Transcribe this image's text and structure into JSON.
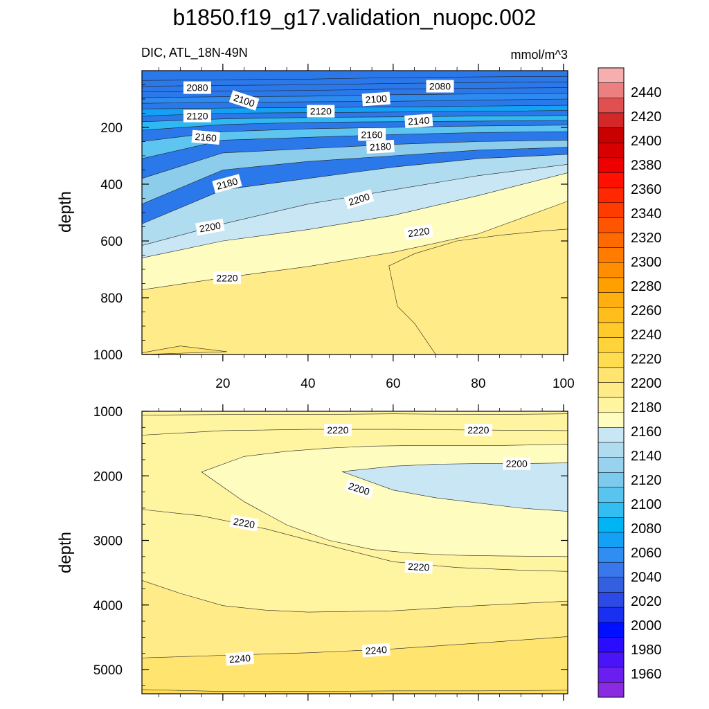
{
  "title": "b1850.f19_g17.validation_nuopc.002",
  "subtitle_left": "DIC, ATL_18N-49N",
  "subtitle_right": "mmol/m^3",
  "ylabel": "depth",
  "colorbar": {
    "labels": [
      1960,
      1980,
      2000,
      2020,
      2040,
      2060,
      2080,
      2100,
      2120,
      2140,
      2160,
      2180,
      2200,
      2220,
      2240,
      2260,
      2280,
      2300,
      2320,
      2340,
      2360,
      2380,
      2400,
      2420,
      2440
    ],
    "colors": [
      "#8a2be2",
      "#6a1ef0",
      "#4a14f8",
      "#2a0cff",
      "#0010ff",
      "#1a30f0",
      "#2e4ae6",
      "#3460e0",
      "#3878ea",
      "#2f8ef0",
      "#14a0f5",
      "#00b4f5",
      "#32bef2",
      "#5ac4f0",
      "#7ccbee",
      "#98d2ee",
      "#b0dcef",
      "#c8e6f4",
      "#fffcc0",
      "#fff4a0",
      "#ffec88",
      "#ffe470",
      "#ffdc50",
      "#ffd43a",
      "#ffca2a",
      "#ffbe1c",
      "#ffb010",
      "#ffa000",
      "#ff8e00",
      "#ff7c00",
      "#ff6a00",
      "#ff5400",
      "#ff3c00",
      "#ff2800",
      "#ff1000",
      "#ee0000",
      "#d80000",
      "#c80000",
      "#d42828",
      "#e05050",
      "#ec8080",
      "#f6aeae"
    ]
  },
  "chart_data": [
    {
      "type": "contour",
      "panel": "upper",
      "title": "b1850.f19_g17.validation_nuopc.002",
      "subtitle": "DIC, ATL_18N-49N",
      "units": "mmol/m^3",
      "xlabel": "",
      "ylabel": "depth",
      "xlim": [
        1,
        101
      ],
      "ylim": [
        1000,
        0
      ],
      "xticks": [
        20,
        40,
        60,
        80,
        100
      ],
      "yticks": [
        200,
        400,
        600,
        800,
        1000
      ],
      "fill_colors": {
        "2060": "#2a78ea",
        "2080": "#2c8af0",
        "2100": "#14a0f5",
        "2120": "#2fb8f2",
        "2140": "#5ec4f0",
        "2160": "#8ccdec",
        "2180": "#b0dcef",
        "2200": "#c8e6f4",
        "2210": "#fffcc0",
        "2220": "#fff4a0",
        "2230": "#ffec88",
        "2240": "#ffe470"
      },
      "contours": [
        {
          "level": 2240,
          "x": [
            1,
            10,
            21,
            1
          ],
          "y": [
            994,
            970,
            990,
            1000
          ],
          "closed": true
        },
        {
          "level": 2230,
          "x": [
            101,
            95,
            85,
            75,
            65,
            59,
            61,
            65,
            70,
            80,
            101
          ],
          "y": [
            558,
            565,
            580,
            600,
            645,
            688,
            830,
            890,
            1000,
            1000,
            1000
          ],
          "closed": true
        },
        {
          "level": 2220,
          "x": [
            1,
            20,
            40,
            60,
            80,
            101
          ],
          "y": [
            772,
            730,
            690,
            640,
            575,
            460
          ]
        },
        {
          "level": 2210,
          "x": [
            1,
            20,
            40,
            60,
            80,
            101
          ],
          "y": [
            660,
            600,
            560,
            510,
            440,
            360
          ]
        },
        {
          "level": 2200,
          "x": [
            1,
            20,
            40,
            60,
            80,
            101
          ],
          "y": [
            616,
            540,
            470,
            420,
            370,
            330
          ]
        },
        {
          "level": 2190,
          "x": [
            1,
            20,
            40,
            60,
            80,
            101
          ],
          "y": [
            540,
            420,
            380,
            340,
            310,
            295
          ]
        },
        {
          "level": 2180,
          "x": [
            1,
            20,
            40,
            60,
            80,
            101
          ],
          "y": [
            470,
            350,
            320,
            300,
            280,
            270
          ]
        },
        {
          "level": 2170,
          "x": [
            1,
            20,
            40,
            60,
            80,
            101
          ],
          "y": [
            380,
            290,
            275,
            260,
            250,
            245
          ]
        },
        {
          "level": 2160,
          "x": [
            1,
            20,
            40,
            60,
            80,
            101
          ],
          "y": [
            310,
            245,
            235,
            225,
            218,
            215
          ]
        },
        {
          "level": 2150,
          "x": [
            1,
            20,
            40,
            60,
            80,
            101
          ],
          "y": [
            250,
            215,
            205,
            200,
            195,
            192
          ]
        },
        {
          "level": 2140,
          "x": [
            1,
            20,
            40,
            60,
            80,
            101
          ],
          "y": [
            210,
            190,
            182,
            180,
            178,
            175
          ]
        },
        {
          "level": 2130,
          "x": [
            1,
            20,
            40,
            60,
            80,
            101
          ],
          "y": [
            180,
            170,
            165,
            163,
            160,
            158
          ]
        },
        {
          "level": 2120,
          "x": [
            1,
            20,
            40,
            60,
            80,
            101
          ],
          "y": [
            160,
            150,
            148,
            146,
            144,
            140
          ]
        },
        {
          "level": 2110,
          "x": [
            1,
            20,
            40,
            60,
            80,
            101
          ],
          "y": [
            135,
            132,
            130,
            128,
            125,
            122
          ]
        },
        {
          "level": 2100,
          "x": [
            1,
            20,
            40,
            60,
            80,
            101
          ],
          "y": [
            115,
            112,
            110,
            108,
            104,
            100
          ]
        },
        {
          "level": 2090,
          "x": [
            1,
            20,
            40,
            60,
            80,
            101
          ],
          "y": [
            95,
            92,
            90,
            85,
            82,
            80
          ]
        },
        {
          "level": 2080,
          "x": [
            1,
            20,
            40,
            60,
            80,
            101
          ],
          "y": [
            75,
            72,
            70,
            65,
            62,
            60
          ]
        },
        {
          "level": 2070,
          "x": [
            1,
            20,
            40,
            60,
            80,
            101
          ],
          "y": [
            55,
            52,
            50,
            45,
            42,
            40
          ]
        },
        {
          "level": 2060,
          "x": [
            1,
            20,
            40,
            60,
            80,
            101
          ],
          "y": [
            35,
            32,
            30,
            25,
            22,
            20
          ]
        }
      ],
      "labels": [
        {
          "text": "2080",
          "x": 14,
          "y": 60,
          "angle": 0
        },
        {
          "text": "2100",
          "x": 25,
          "y": 105,
          "angle": 18
        },
        {
          "text": "2120",
          "x": 14,
          "y": 160,
          "angle": 0
        },
        {
          "text": "2120",
          "x": 43,
          "y": 143,
          "angle": 0
        },
        {
          "text": "2100",
          "x": 56,
          "y": 100,
          "angle": -4
        },
        {
          "text": "2080",
          "x": 71,
          "y": 55,
          "angle": 0
        },
        {
          "text": "2140",
          "x": 66,
          "y": 177,
          "angle": -4
        },
        {
          "text": "2160",
          "x": 16,
          "y": 235,
          "angle": 5
        },
        {
          "text": "2160",
          "x": 55,
          "y": 225,
          "angle": 0
        },
        {
          "text": "2180",
          "x": 57,
          "y": 268,
          "angle": -3
        },
        {
          "text": "2180",
          "x": 21,
          "y": 398,
          "angle": -15
        },
        {
          "text": "2200",
          "x": 52,
          "y": 453,
          "angle": -17
        },
        {
          "text": "2200",
          "x": 17,
          "y": 551,
          "angle": -10
        },
        {
          "text": "2220",
          "x": 66,
          "y": 569,
          "angle": -8
        },
        {
          "text": "2220",
          "x": 21,
          "y": 730,
          "angle": 0
        }
      ]
    },
    {
      "type": "contour",
      "panel": "lower",
      "xlabel": "",
      "ylabel": "depth",
      "xlim": [
        1,
        101
      ],
      "ylim": [
        5375,
        1000
      ],
      "xticks": [
        20,
        40,
        60,
        80,
        100
      ],
      "yticks": [
        1000,
        2000,
        3000,
        4000,
        5000
      ],
      "fill_colors": {
        "2200": "#c8e6f4",
        "2210": "#fffcc0",
        "2220": "#fff4a0",
        "2230": "#ffec88",
        "2240": "#ffe470",
        "2250": "#ffdc50"
      },
      "contours": [
        {
          "level": 2200,
          "x": [
            48,
            60,
            70,
            80,
            90,
            101,
            101,
            90,
            80,
            70,
            60,
            48
          ],
          "y": [
            1935,
            1850,
            1820,
            1810,
            1810,
            1800,
            2550,
            2500,
            2420,
            2340,
            2220,
            1935
          ],
          "closed": true
        },
        {
          "level": 2210,
          "x": [
            15,
            25,
            35,
            45,
            55,
            65,
            75,
            85,
            101,
            101,
            85,
            75,
            65,
            55,
            45,
            35,
            25,
            15
          ],
          "y": [
            1940,
            1700,
            1620,
            1570,
            1540,
            1530,
            1530,
            1530,
            1510,
            3250,
            3240,
            3230,
            3200,
            3140,
            3000,
            2760,
            2400,
            1940
          ],
          "closed": true
        },
        {
          "level": 2220,
          "x": [
            1,
            20,
            40,
            60,
            80,
            101
          ],
          "y": [
            1060,
            1050,
            1050,
            1040,
            1050,
            1040
          ]
        },
        {
          "level": 2220,
          "x": [
            1,
            20,
            40,
            60,
            80,
            101
          ],
          "y": [
            1370,
            1300,
            1280,
            1280,
            1290,
            1300
          ]
        },
        {
          "level": 2220,
          "x": [
            1,
            15,
            30,
            45,
            60,
            75,
            90,
            101
          ],
          "y": [
            2520,
            2620,
            2820,
            3080,
            3330,
            3420,
            3460,
            3480
          ]
        },
        {
          "level": 2230,
          "x": [
            1,
            10,
            20,
            30,
            40,
            60,
            80,
            101
          ],
          "y": [
            3620,
            3820,
            4010,
            4080,
            4110,
            4090,
            4010,
            3940
          ]
        },
        {
          "level": 2240,
          "x": [
            1,
            20,
            40,
            60,
            80,
            101
          ],
          "y": [
            4820,
            4780,
            4740,
            4680,
            4590,
            4490
          ]
        },
        {
          "level": 2250,
          "x": [
            1,
            20,
            40,
            60,
            80,
            101
          ],
          "y": [
            5310,
            5340,
            5340,
            5330,
            5330,
            5320
          ]
        }
      ],
      "labels": [
        {
          "text": "2220",
          "x": 47,
          "y": 1290,
          "angle": 0
        },
        {
          "text": "2220",
          "x": 80,
          "y": 1290,
          "angle": 0
        },
        {
          "text": "2200",
          "x": 89,
          "y": 1810,
          "angle": 0
        },
        {
          "text": "2200",
          "x": 52,
          "y": 2200,
          "angle": 18
        },
        {
          "text": "2220",
          "x": 25,
          "y": 2730,
          "angle": 10
        },
        {
          "text": "2220",
          "x": 66,
          "y": 3410,
          "angle": 3
        },
        {
          "text": "2240",
          "x": 24,
          "y": 4830,
          "angle": -4
        },
        {
          "text": "2240",
          "x": 56,
          "y": 4700,
          "angle": -4
        }
      ]
    }
  ]
}
